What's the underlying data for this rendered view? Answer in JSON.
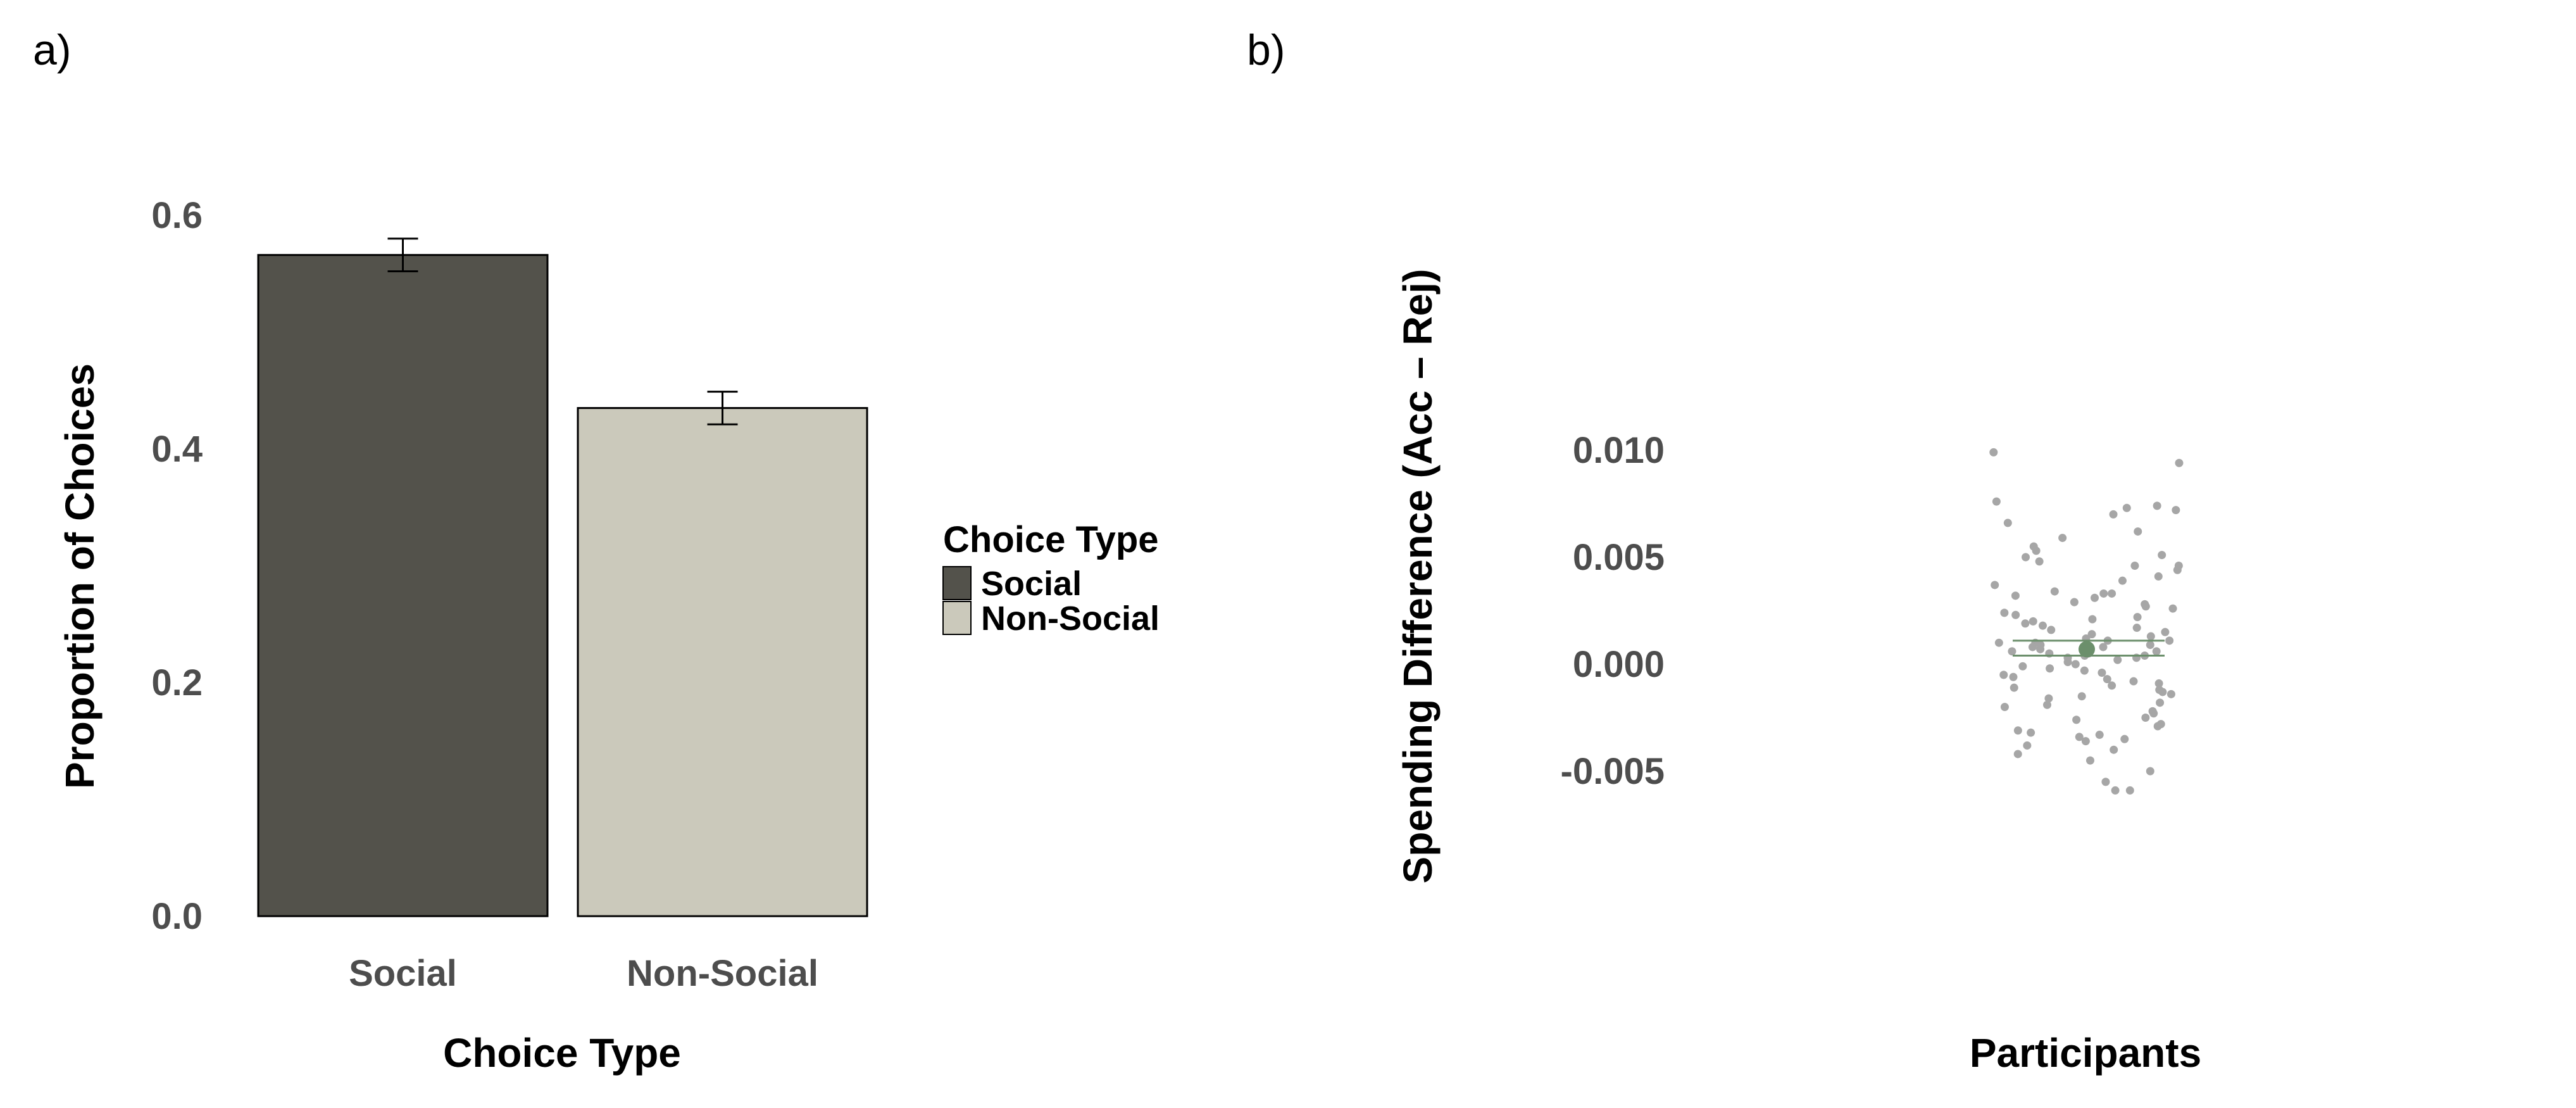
{
  "panels": {
    "a": "a)",
    "b": "b)"
  },
  "colors": {
    "social": "#53524b",
    "non_social": "#cbc9bb",
    "point": "#a6a6a6",
    "mean": "#6b8f6b",
    "tick_text": "#4d4d4d"
  },
  "chart_data": [
    {
      "type": "bar",
      "panel": "a)",
      "categories": [
        "Social",
        "Non-Social"
      ],
      "values": [
        0.566,
        0.435
      ],
      "error": [
        0.014,
        0.014
      ],
      "xlabel": "Choice Type",
      "ylabel": "Proportion of Choices",
      "ylim": [
        0,
        0.6
      ],
      "yticks": [
        "0.0",
        "0.2",
        "0.4",
        "0.6"
      ],
      "grid": false,
      "legend": {
        "title": "Choice Type",
        "entries": [
          "Social",
          "Non-Social"
        ],
        "placement": "right"
      }
    },
    {
      "type": "scatter",
      "panel": "b)",
      "xlabel": "Participants",
      "ylabel": "Spending Difference (Acc – Rej)",
      "ylim": [
        -0.006,
        0.01
      ],
      "yticks": [
        "-0.005",
        "0.000",
        "0.005",
        "0.010"
      ],
      "grid": false,
      "mean": 0.0007,
      "ci": [
        0.0004,
        0.0011
      ],
      "values": [
        0.0099,
        0.0094,
        0.0076,
        0.0074,
        0.0073,
        0.0072,
        0.007,
        0.0066,
        0.0062,
        0.0059,
        0.0055,
        0.0053,
        0.0051,
        0.005,
        0.0048,
        0.0046,
        0.0046,
        0.0044,
        0.0041,
        0.0039,
        0.0037,
        0.0034,
        0.0033,
        0.0033,
        0.0032,
        0.0031,
        0.0029,
        0.0028,
        0.0027,
        0.0026,
        0.0024,
        0.0023,
        0.0022,
        0.0021,
        0.002,
        0.0019,
        0.0018,
        0.0017,
        0.0016,
        0.0015,
        0.0014,
        0.0013,
        0.0012,
        0.0011,
        0.0011,
        0.001,
        0.001,
        0.0009,
        0.0009,
        0.0008,
        0.0008,
        0.0007,
        0.0006,
        0.0006,
        0.0005,
        0.0005,
        0.0004,
        0.0004,
        0.0003,
        0.0003,
        0.0002,
        0.0001,
        0.0,
        -0.0001,
        -0.0002,
        -0.0003,
        -0.0004,
        -0.0005,
        -0.0006,
        -0.0007,
        -0.0008,
        -0.0009,
        -0.001,
        -0.0011,
        -0.0012,
        -0.0013,
        -0.0014,
        -0.0015,
        -0.0016,
        -0.0018,
        -0.0019,
        -0.002,
        -0.0022,
        -0.0023,
        -0.0025,
        -0.0026,
        -0.0028,
        -0.0029,
        -0.0031,
        -0.0032,
        -0.0033,
        -0.0034,
        -0.0035,
        -0.0036,
        -0.0038,
        -0.004,
        -0.0042,
        -0.0045,
        -0.005,
        -0.0055,
        -0.0059,
        -0.0059
      ]
    }
  ]
}
